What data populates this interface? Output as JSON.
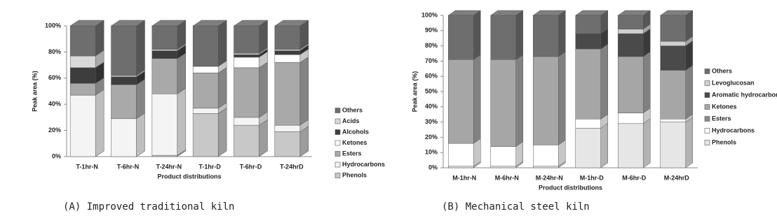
{
  "chart_data": [
    {
      "type": "bar3d",
      "caption": "(A) Improved traditional kiln",
      "x_label": "Product distributions",
      "y_label": "Peak area (%)",
      "categories": [
        "T-1hr-N",
        "T-6hr-N",
        "T-24hr-N",
        "T-1hr-D",
        "T-6hr-D",
        "T-24hrD"
      ],
      "series": [
        {
          "name": "Phenols",
          "color": "#c8c8c8",
          "values": [
            0,
            0,
            1,
            33,
            24,
            19
          ]
        },
        {
          "name": "Hydrocarbons",
          "color": "#f4f4f4",
          "values": [
            47,
            29,
            47,
            4,
            6,
            5
          ]
        },
        {
          "name": "Esters",
          "color": "#a9a9a9",
          "values": [
            9,
            26,
            27,
            27,
            38,
            48
          ]
        },
        {
          "name": "Ketones",
          "color": "#ffffff",
          "values": [
            0,
            0,
            0,
            5,
            8,
            6
          ]
        },
        {
          "name": "Alcohols",
          "color": "#3d3d3d",
          "values": [
            12,
            6,
            6,
            0,
            2,
            3
          ]
        },
        {
          "name": "Acids",
          "color": "#d9d9d9",
          "values": [
            9,
            1,
            1,
            0,
            1,
            1
          ]
        },
        {
          "name": "Others",
          "color": "#6e6e6e",
          "values": [
            23,
            38,
            18,
            31,
            21,
            18
          ]
        }
      ],
      "ylim": [
        0,
        100
      ],
      "yticks": [
        {
          "value": 0,
          "label": "0%"
        },
        {
          "value": 20,
          "label": "20%"
        },
        {
          "value": 40,
          "label": "40%"
        },
        {
          "value": 60,
          "label": "60%"
        },
        {
          "value": 80,
          "label": "80%"
        },
        {
          "value": 100,
          "label": "100%"
        }
      ]
    },
    {
      "type": "bar3d",
      "caption": "(B) Mechanical steel kiln",
      "x_label": "Product distributions",
      "y_label": "Peak area (%)",
      "categories": [
        "M-1hr-N",
        "M-6hr-N",
        "M-24hr-N",
        "M-1hr-D",
        "M-6hr-D",
        "M-24hrD"
      ],
      "series": [
        {
          "name": "Phenols",
          "color": "#e6e6e6",
          "values": [
            1,
            1,
            1,
            26,
            29,
            30
          ]
        },
        {
          "name": "Hydrocarbons",
          "color": "#ffffff",
          "values": [
            15,
            13,
            14,
            6,
            7,
            2
          ]
        },
        {
          "name": "Esters",
          "color": "#8c8c8c",
          "values": [
            0,
            0,
            0,
            0,
            0,
            0
          ]
        },
        {
          "name": "Ketones",
          "color": "#a6a6a6",
          "values": [
            55,
            57,
            58,
            46,
            37,
            32
          ]
        },
        {
          "name": "Aromatic hydrocarbons",
          "color": "#4a4a4a",
          "values": [
            0,
            0,
            0,
            10,
            15,
            16
          ]
        },
        {
          "name": "Levoglucosan",
          "color": "#d0d0d0",
          "values": [
            0,
            0,
            0,
            0,
            3,
            3
          ]
        },
        {
          "name": "Others",
          "color": "#6e6e6e",
          "values": [
            29,
            29,
            27,
            12,
            9,
            17
          ]
        }
      ],
      "ylim": [
        0,
        100
      ],
      "yticks": [
        {
          "value": 0,
          "label": "0%"
        },
        {
          "value": 10,
          "label": "10%"
        },
        {
          "value": 20,
          "label": "20%"
        },
        {
          "value": 30,
          "label": "30%"
        },
        {
          "value": 40,
          "label": "40%"
        },
        {
          "value": 50,
          "label": "50%"
        },
        {
          "value": 60,
          "label": "60%"
        },
        {
          "value": 70,
          "label": "70%"
        },
        {
          "value": 80,
          "label": "80%"
        },
        {
          "value": 90,
          "label": "90%"
        },
        {
          "value": 100,
          "label": "100%"
        }
      ]
    }
  ]
}
